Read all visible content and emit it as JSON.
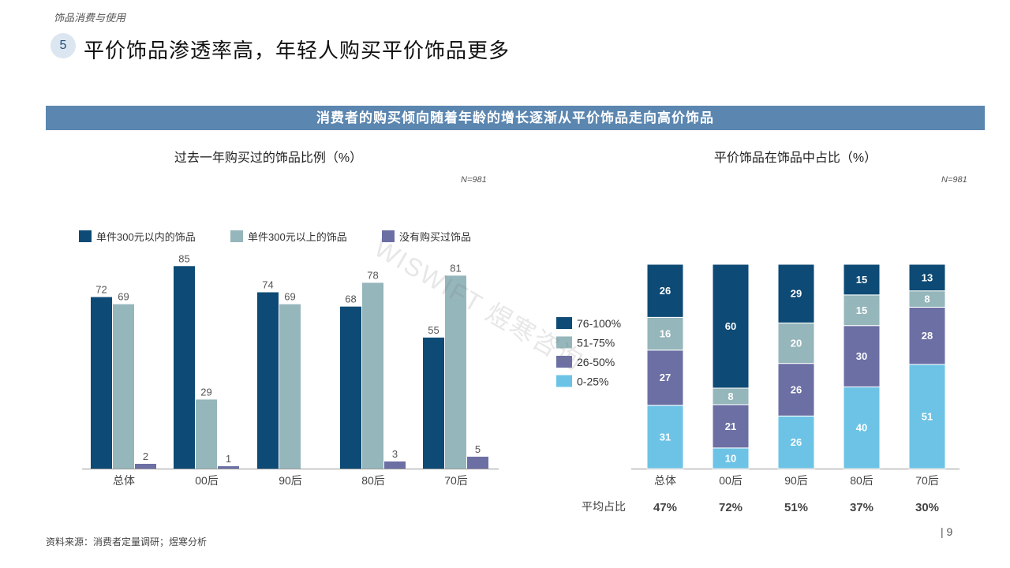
{
  "header": {
    "section_label": "饰品消费与使用",
    "slide_number": "5",
    "title": "平价饰品渗透率高，年轻人购买平价饰品更多"
  },
  "banner": "消费者的购买倾向随着年龄的增长逐渐从平价饰品走向高价饰品",
  "watermark": "WISWIFT 煜寒咨询",
  "footer": {
    "source": "资料来源：消费者定量调研；煜寒分析",
    "page": "| 9"
  },
  "colors": {
    "dark_blue": "#0d4a75",
    "gray_teal": "#95b6bb",
    "purple": "#6b6fa3",
    "light_blue": "#6cc3e6",
    "banner": "#5b86b0"
  },
  "chart_data": [
    {
      "type": "bar",
      "title": "过去一年购买过的饰品比例（%）",
      "n_label": "N=981",
      "categories": [
        "总体",
        "00后",
        "90后",
        "80后",
        "70后"
      ],
      "series": [
        {
          "name": "单件300元以内的饰品",
          "values": [
            72,
            85,
            74,
            68,
            55
          ]
        },
        {
          "name": "单件300元以上的饰品",
          "values": [
            69,
            29,
            69,
            78,
            81
          ]
        },
        {
          "name": "没有购买过饰品",
          "values": [
            2,
            1,
            null,
            3,
            5
          ]
        }
      ],
      "ylim": [
        0,
        100
      ],
      "legend": "top"
    },
    {
      "type": "bar",
      "stacked": true,
      "title": "平价饰品在饰品中占比（%）",
      "n_label": "N=981",
      "categories": [
        "总体",
        "00后",
        "90后",
        "80后",
        "70后"
      ],
      "series": [
        {
          "name": "0-25%",
          "values": [
            31,
            10,
            26,
            40,
            51
          ]
        },
        {
          "name": "26-50%",
          "values": [
            27,
            21,
            26,
            30,
            28
          ]
        },
        {
          "name": "51-75%",
          "values": [
            16,
            8,
            20,
            15,
            8
          ]
        },
        {
          "name": "76-100%",
          "values": [
            26,
            60,
            29,
            15,
            13
          ]
        }
      ],
      "legend": "left",
      "legend_order": [
        "76-100%",
        "51-75%",
        "26-50%",
        "0-25%"
      ],
      "avg_label": "平均占比",
      "averages": [
        "47%",
        "72%",
        "51%",
        "37%",
        "30%"
      ]
    }
  ]
}
